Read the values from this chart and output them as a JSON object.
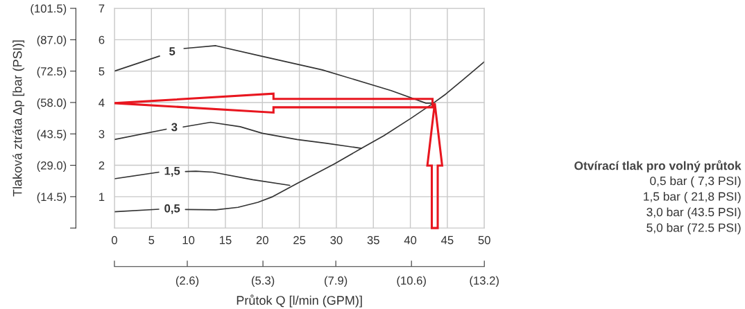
{
  "chart_data": {
    "type": "line",
    "xlim": [
      0,
      50
    ],
    "ylim": [
      0,
      7
    ],
    "xticks": [
      0,
      5,
      10,
      15,
      20,
      25,
      30,
      35,
      40,
      45,
      50
    ],
    "yticks": [
      1,
      2,
      3,
      4,
      5,
      6,
      7
    ],
    "y2lim": [
      0,
      101.5
    ],
    "y2ticks": [
      {
        "value": 0,
        "label": null
      },
      {
        "value": 14.5,
        "label": "(14.5)"
      },
      {
        "value": 29.0,
        "label": "(29.0)"
      },
      {
        "value": 43.5,
        "label": "(43.5)"
      },
      {
        "value": 58.0,
        "label": "(58.0)"
      },
      {
        "value": 72.5,
        "label": "(72.5)"
      },
      {
        "value": 87.0,
        "label": "(87.0)"
      },
      {
        "value": 101.5,
        "label": "(101.5)"
      }
    ],
    "y2label": "Tlaková ztráta Δp [bar (PSI)]",
    "x2lim": [
      0,
      13.2
    ],
    "x2ticks": [
      {
        "value": 0,
        "label": null
      },
      {
        "value": 2.6,
        "label": "(2.6)"
      },
      {
        "value": 5.3,
        "label": "(5.3)"
      },
      {
        "value": 7.9,
        "label": "(7.9)"
      },
      {
        "value": 10.6,
        "label": "(10.6)"
      },
      {
        "value": 13.2,
        "label": "(13.2)"
      }
    ],
    "x2label": "Průtok Q [l/min (GPM)]",
    "grid": true,
    "legend": false,
    "marker": "none",
    "line_style": "solid",
    "series": [
      {
        "name": "5",
        "color": "#333333",
        "x": [
          0,
          6.1,
          7.8,
          9.4,
          13.7,
          20,
          28.1,
          37.4,
          42.1,
          43
        ],
        "values": [
          5.0,
          5.48,
          null,
          5.72,
          5.81,
          5.47,
          5.04,
          4.38,
          3.98,
          3.98
        ]
      },
      {
        "name": "3",
        "color": "#333333",
        "x": [
          0,
          7.0,
          8.1,
          9.3,
          13.0,
          17.0,
          20,
          24.7,
          28.7,
          33.4
        ],
        "values": [
          2.82,
          3.15,
          null,
          3.22,
          3.37,
          3.23,
          3.02,
          2.82,
          2.7,
          2.54
        ]
      },
      {
        "name": "1,5",
        "color": "#333333",
        "x": [
          0,
          6.0,
          7.8,
          9.6,
          11,
          13.3,
          18.7,
          23.7
        ],
        "values": [
          1.57,
          1.78,
          null,
          1.8,
          1.81,
          1.78,
          1.54,
          1.36
        ]
      },
      {
        "name": "0,5",
        "color": "#333333",
        "x": [
          0,
          6,
          7.8,
          9.6,
          13.7,
          16.7,
          19.4,
          21.4,
          24.7,
          29.7,
          33.4,
          36.4,
          40.1,
          43.1,
          44.8,
          47.2,
          50
        ],
        "values": [
          0.52,
          0.6,
          null,
          0.59,
          0.58,
          0.66,
          0.82,
          1.0,
          1.42,
          2.04,
          2.54,
          2.94,
          3.5,
          3.98,
          4.27,
          4.74,
          5.3
        ]
      }
    ],
    "annotations": [
      "Otvírací tlak pro volný průtok",
      "0,5 bar ( 7,3 PSI)",
      "1,5 bar ( 21,8 PSI)",
      "3,0 bar (43.5 PSI)",
      "5,0 bar (72.5 PSI)"
    ]
  }
}
